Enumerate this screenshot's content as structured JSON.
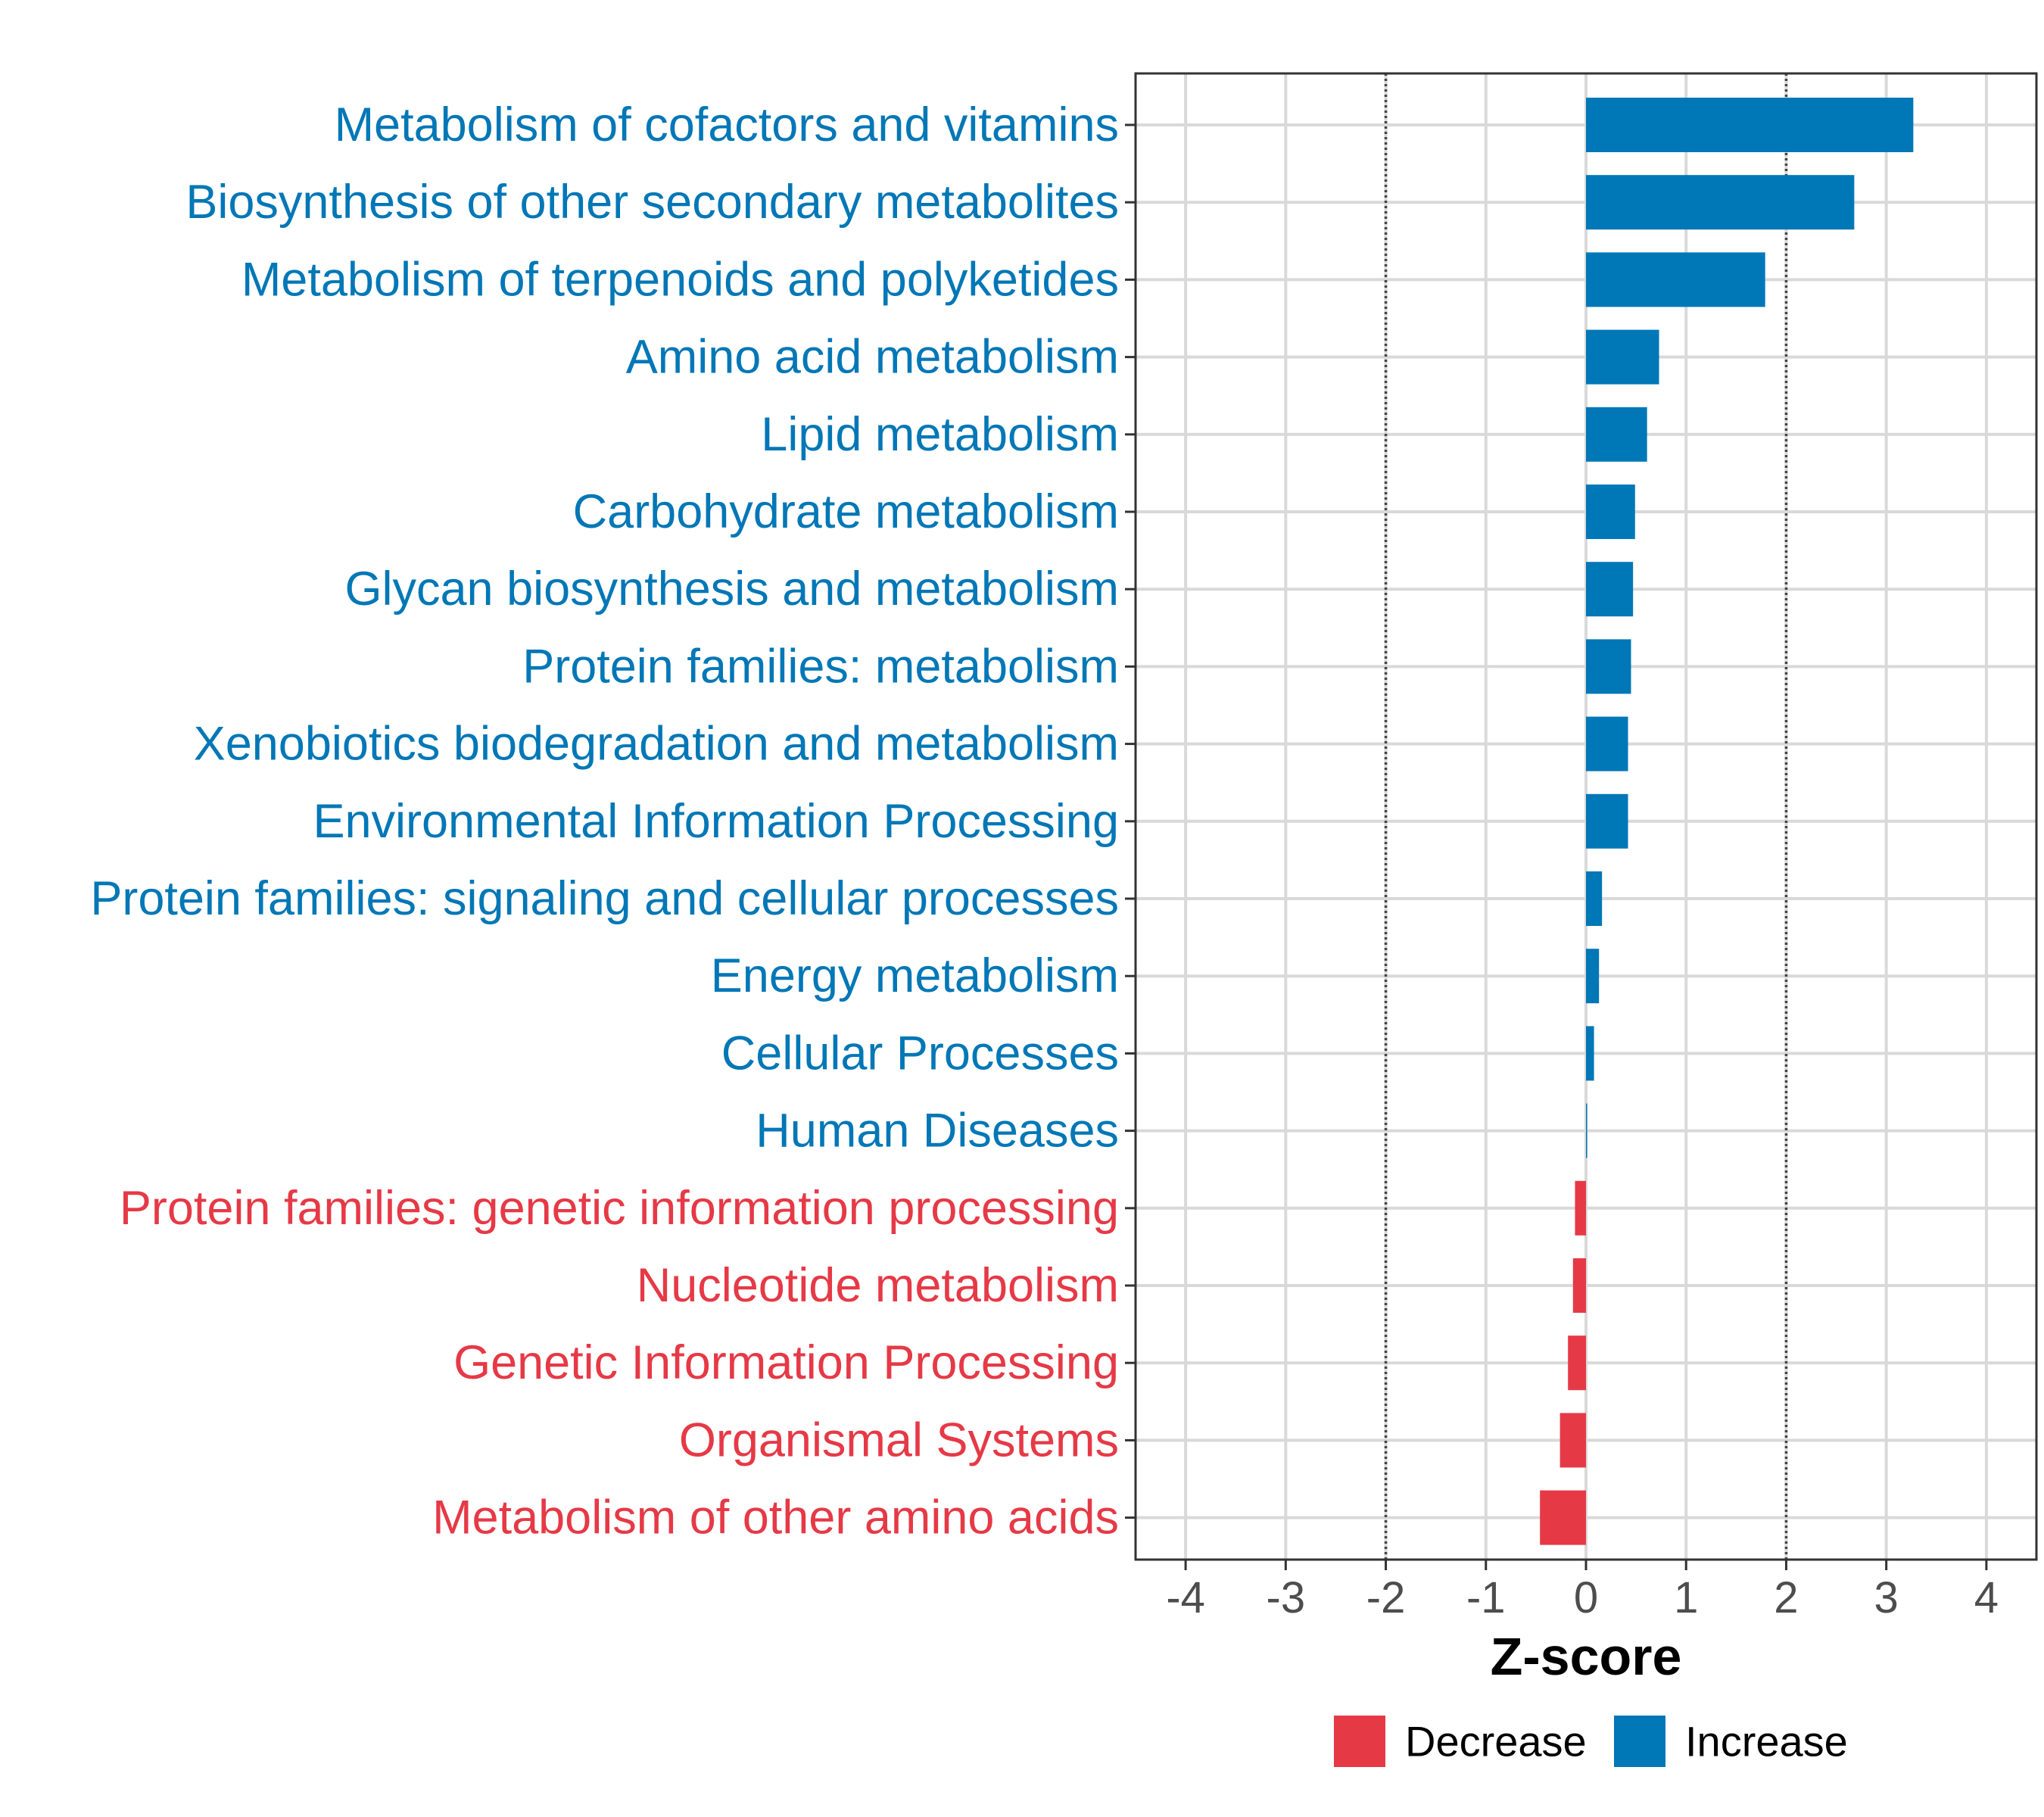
{
  "chart_data": {
    "type": "bar",
    "orientation": "horizontal",
    "title": "",
    "xlabel": "Z-score",
    "ylabel": "",
    "xlim": [
      -4.5,
      4.5
    ],
    "xticks": [
      -4,
      -3,
      -2,
      -1,
      0,
      1,
      2,
      3,
      4
    ],
    "reference_lines": [
      -2,
      2
    ],
    "grid": true,
    "legend_position": "bottom",
    "categories": [
      "Metabolism of cofactors and vitamins",
      "Biosynthesis of other secondary metabolites",
      "Metabolism of terpenoids and polyketides",
      "Amino acid metabolism",
      "Lipid metabolism",
      "Carbohydrate metabolism",
      "Glycan biosynthesis and metabolism",
      "Protein families: metabolism",
      "Xenobiotics biodegradation and metabolism",
      "Environmental Information Processing",
      "Protein families: signaling and cellular processes",
      "Energy metabolism",
      "Cellular Processes",
      "Human Diseases",
      "Protein families: genetic information processing",
      "Nucleotide metabolism",
      "Genetic Information Processing",
      "Organismal Systems",
      "Metabolism of other amino acids"
    ],
    "values": [
      3.27,
      2.68,
      1.79,
      0.73,
      0.61,
      0.49,
      0.47,
      0.45,
      0.42,
      0.42,
      0.16,
      0.13,
      0.08,
      0.01,
      -0.11,
      -0.13,
      -0.18,
      -0.26,
      -0.46
    ],
    "groups": [
      "Increase",
      "Increase",
      "Increase",
      "Increase",
      "Increase",
      "Increase",
      "Increase",
      "Increase",
      "Increase",
      "Increase",
      "Increase",
      "Increase",
      "Increase",
      "Increase",
      "Decrease",
      "Decrease",
      "Decrease",
      "Decrease",
      "Decrease"
    ],
    "legend": [
      {
        "name": "Decrease",
        "color": "#e63946"
      },
      {
        "name": "Increase",
        "color": "#0077b6"
      }
    ]
  },
  "colors": {
    "increase": "#0077b6",
    "decrease": "#e63946",
    "grid": "#d9d9d9",
    "axis": "#333333"
  }
}
